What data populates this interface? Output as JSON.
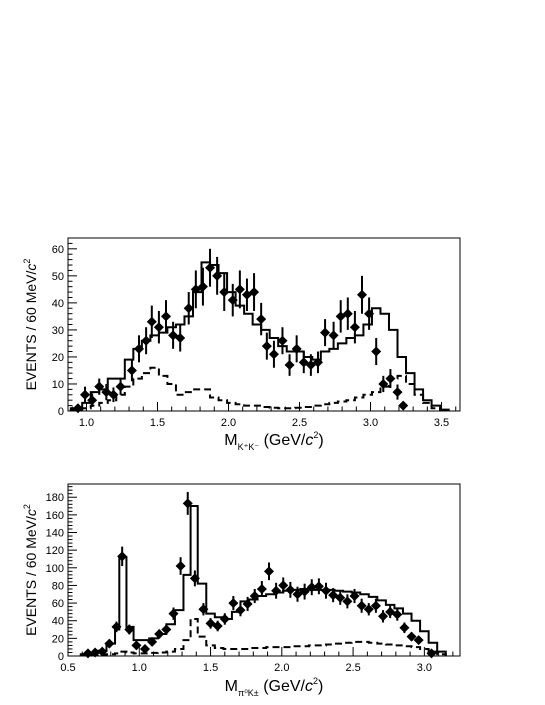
{
  "chart_data": [
    {
      "type": "line",
      "xlabel": {
        "main": "M",
        "sub": "K⁺K⁻",
        "unit": " (GeV/",
        "c": "c",
        "sup": "2",
        "close": ")"
      },
      "ylabel": {
        "text": "EVENTS / 60 MeV/",
        "c": "c",
        "sup": "2"
      },
      "xlim": [
        0.87,
        3.63
      ],
      "ylim": [
        0,
        64
      ],
      "xticks": [
        1.0,
        1.5,
        2.0,
        2.5,
        3.0,
        3.5
      ],
      "xtick_labels": [
        "1.0",
        "1.5",
        "2.0",
        "2.5",
        "3.0",
        "3.5"
      ],
      "yticks": [
        0,
        10,
        20,
        30,
        40,
        50,
        60
      ],
      "ytick_labels": [
        "0",
        "10",
        "20",
        "30",
        "40",
        "50",
        "60"
      ],
      "bin_width": 0.06,
      "series": [
        {
          "style": "points",
          "points": [
            [
              0.94,
              1,
              0.6
            ],
            [
              0.99,
              6,
              3
            ],
            [
              1.04,
              4,
              2.5
            ],
            [
              1.09,
              9,
              3
            ],
            [
              1.14,
              7,
              3
            ],
            [
              1.19,
              6,
              2.7
            ],
            [
              1.24,
              9,
              3
            ],
            [
              1.32,
              15,
              4
            ],
            [
              1.37,
              23,
              5
            ],
            [
              1.42,
              26,
              5
            ],
            [
              1.46,
              33,
              6
            ],
            [
              1.51,
              31,
              6
            ],
            [
              1.56,
              35,
              6
            ],
            [
              1.61,
              28,
              5
            ],
            [
              1.66,
              27,
              5
            ],
            [
              1.72,
              38,
              6
            ],
            [
              1.77,
              45,
              7
            ],
            [
              1.82,
              46,
              7
            ],
            [
              1.87,
              53,
              7
            ],
            [
              1.92,
              50,
              7
            ],
            [
              1.97,
              44,
              7
            ],
            [
              2.03,
              41,
              6
            ],
            [
              2.08,
              45,
              7
            ],
            [
              2.13,
              43,
              6
            ],
            [
              2.18,
              44,
              7
            ],
            [
              2.23,
              34,
              6
            ],
            [
              2.27,
              24,
              5
            ],
            [
              2.32,
              21,
              5
            ],
            [
              2.38,
              26,
              5
            ],
            [
              2.43,
              17,
              4
            ],
            [
              2.48,
              23,
              5
            ],
            [
              2.53,
              18,
              4
            ],
            [
              2.58,
              17,
              4
            ],
            [
              2.63,
              18,
              4
            ],
            [
              2.68,
              29,
              5
            ],
            [
              2.74,
              28,
              5
            ],
            [
              2.79,
              35,
              6
            ],
            [
              2.84,
              36,
              6
            ],
            [
              2.89,
              31,
              6
            ],
            [
              2.94,
              43,
              7
            ],
            [
              2.99,
              36,
              6
            ],
            [
              3.04,
              22,
              5
            ],
            [
              3.09,
              10,
              3
            ],
            [
              3.14,
              12,
              3.5
            ],
            [
              3.19,
              7,
              2.8
            ],
            [
              3.23,
              2,
              1.5
            ]
          ]
        },
        {
          "style": "solid-step",
          "edges": [
            0.89,
            0.97,
            1.03,
            1.09,
            1.15,
            1.21,
            1.27,
            1.33,
            1.39,
            1.45,
            1.51,
            1.57,
            1.63,
            1.69,
            1.75,
            1.81,
            1.87,
            1.93,
            1.99,
            2.05,
            2.11,
            2.17,
            2.23,
            2.29,
            2.35,
            2.41,
            2.47,
            2.53,
            2.59,
            2.65,
            2.71,
            2.77,
            2.83,
            2.89,
            2.95,
            3.01,
            3.07,
            3.13,
            3.19,
            3.25,
            3.31,
            3.37,
            3.43,
            3.49,
            3.55
          ],
          "values": [
            1,
            3,
            7,
            8,
            12,
            12,
            19,
            23,
            26,
            28,
            29,
            31,
            32,
            35,
            44,
            55,
            54,
            51,
            44,
            39,
            36,
            32,
            30,
            27,
            24,
            22,
            22,
            20,
            19,
            22,
            23,
            25,
            27,
            28,
            32,
            38,
            36,
            30,
            20,
            14,
            8,
            4,
            2,
            0.5
          ]
        },
        {
          "style": "dashed-step",
          "edges": [
            0.89,
            0.97,
            1.03,
            1.09,
            1.15,
            1.21,
            1.27,
            1.33,
            1.39,
            1.45,
            1.51,
            1.57,
            1.63,
            1.69,
            1.75,
            1.81,
            1.87,
            1.93,
            1.99,
            2.05,
            2.11,
            2.17,
            2.23,
            2.29,
            2.35,
            2.41,
            2.47,
            2.53,
            2.59,
            2.65,
            2.71,
            2.77,
            2.83,
            2.89,
            2.95,
            3.01,
            3.07,
            3.13,
            3.19,
            3.25,
            3.31,
            3.37,
            3.43,
            3.49,
            3.55
          ],
          "values": [
            0.5,
            1,
            2,
            3,
            4,
            6,
            9,
            12,
            14,
            16,
            13,
            10,
            6,
            7,
            8,
            8,
            5,
            4,
            3,
            2.5,
            2,
            2,
            1.5,
            1.2,
            1,
            1,
            1.2,
            1.5,
            2,
            2.5,
            3,
            3.5,
            4,
            5,
            6,
            7,
            9,
            12,
            13,
            10,
            6,
            3,
            1,
            0.3
          ]
        }
      ]
    },
    {
      "type": "line",
      "xlabel": {
        "main": "M",
        "sub": "π⁰K±",
        "unit": " (GeV/",
        "c": "c",
        "sup": "2",
        "close": ")"
      },
      "ylabel": {
        "text": "EVENTS / 60 MeV/",
        "c": "c",
        "sup": "2"
      },
      "xlim": [
        0.5,
        3.25
      ],
      "ylim": [
        0,
        195
      ],
      "xticks": [
        0.5,
        1.0,
        1.5,
        2.0,
        2.5,
        3.0
      ],
      "xtick_labels": [
        "0.5",
        "1.0",
        "1.5",
        "2.0",
        "2.5",
        "3.0"
      ],
      "yticks": [
        0,
        20,
        40,
        60,
        80,
        100,
        120,
        140,
        160,
        180
      ],
      "ytick_labels": [
        "0",
        "20",
        "40",
        "60",
        "80",
        "100",
        "120",
        "140",
        "160",
        "180"
      ],
      "bin_width": 0.06,
      "series": [
        {
          "style": "points",
          "points": [
            [
              0.64,
              3,
              2
            ],
            [
              0.69,
              4,
              2
            ],
            [
              0.74,
              5,
              2.5
            ],
            [
              0.79,
              14,
              4
            ],
            [
              0.84,
              33,
              6
            ],
            [
              0.88,
              113,
              11
            ],
            [
              0.93,
              30,
              5.5
            ],
            [
              0.98,
              12,
              3.5
            ],
            [
              1.04,
              8,
              3
            ],
            [
              1.09,
              16,
              4
            ],
            [
              1.14,
              25,
              5
            ],
            [
              1.19,
              30,
              5.5
            ],
            [
              1.24,
              48,
              7
            ],
            [
              1.29,
              102,
              10
            ],
            [
              1.34,
              173,
              13
            ],
            [
              1.39,
              88,
              9
            ],
            [
              1.45,
              53,
              7
            ],
            [
              1.5,
              37,
              6
            ],
            [
              1.55,
              34,
              6
            ],
            [
              1.6,
              42,
              6.5
            ],
            [
              1.66,
              60,
              8
            ],
            [
              1.71,
              52,
              7
            ],
            [
              1.76,
              59,
              8
            ],
            [
              1.81,
              68,
              8
            ],
            [
              1.86,
              76,
              9
            ],
            [
              1.91,
              96,
              10
            ],
            [
              1.96,
              74,
              9
            ],
            [
              2.01,
              80,
              9
            ],
            [
              2.06,
              75,
              9
            ],
            [
              2.11,
              70,
              8.5
            ],
            [
              2.16,
              73,
              9
            ],
            [
              2.21,
              78,
              9
            ],
            [
              2.26,
              79,
              9
            ],
            [
              2.31,
              74,
              9
            ],
            [
              2.36,
              69,
              8
            ],
            [
              2.41,
              66,
              8
            ],
            [
              2.46,
              62,
              8
            ],
            [
              2.51,
              68,
              8
            ],
            [
              2.56,
              57,
              8
            ],
            [
              2.61,
              53,
              7
            ],
            [
              2.66,
              57,
              8
            ],
            [
              2.71,
              45,
              7
            ],
            [
              2.76,
              50,
              7
            ],
            [
              2.81,
              47,
              7
            ],
            [
              2.86,
              32,
              6
            ],
            [
              2.91,
              22,
              5
            ],
            [
              2.96,
              18,
              4
            ],
            [
              3.05,
              3,
              2
            ]
          ]
        },
        {
          "style": "solid-step",
          "edges": [
            0.59,
            0.65,
            0.71,
            0.77,
            0.83,
            0.86,
            0.91,
            0.96,
            1.01,
            1.07,
            1.13,
            1.19,
            1.25,
            1.31,
            1.36,
            1.41,
            1.47,
            1.53,
            1.59,
            1.65,
            1.71,
            1.77,
            1.83,
            1.89,
            1.95,
            2.01,
            2.07,
            2.13,
            2.19,
            2.25,
            2.31,
            2.37,
            2.43,
            2.49,
            2.55,
            2.61,
            2.67,
            2.73,
            2.79,
            2.85,
            2.91,
            2.97,
            3.03,
            3.09,
            3.15
          ],
          "values": [
            2,
            3,
            6,
            14,
            30,
            112,
            33,
            18,
            18,
            20,
            25,
            36,
            52,
            92,
            170,
            82,
            48,
            44,
            42,
            50,
            62,
            64,
            68,
            70,
            72,
            74,
            75,
            76,
            75,
            75,
            75,
            74,
            73,
            72,
            70,
            67,
            63,
            58,
            54,
            48,
            40,
            28,
            15,
            5
          ]
        },
        {
          "style": "dashed-step",
          "edges": [
            0.59,
            0.65,
            0.71,
            0.77,
            0.83,
            0.86,
            0.91,
            0.96,
            1.01,
            1.07,
            1.13,
            1.19,
            1.25,
            1.31,
            1.36,
            1.41,
            1.47,
            1.53,
            1.59,
            1.65,
            1.71,
            1.77,
            1.83,
            1.89,
            1.95,
            2.01,
            2.07,
            2.13,
            2.19,
            2.25,
            2.31,
            2.37,
            2.43,
            2.49,
            2.55,
            2.61,
            2.67,
            2.73,
            2.79,
            2.85,
            2.91,
            2.97,
            3.03,
            3.09,
            3.15
          ],
          "values": [
            0.5,
            1,
            1.5,
            2,
            3,
            5,
            4,
            3,
            3,
            3.5,
            4,
            5,
            8,
            18,
            42,
            22,
            12,
            9,
            8,
            8,
            8,
            9,
            9,
            10,
            10,
            10,
            11,
            11,
            12,
            12,
            13,
            14,
            15,
            16,
            16,
            15,
            14,
            13,
            12,
            11,
            10,
            8,
            5,
            2
          ]
        }
      ]
    }
  ]
}
